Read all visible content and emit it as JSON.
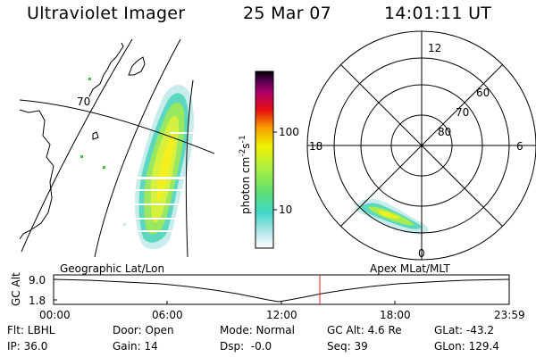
{
  "header": {
    "title": "Ultraviolet Imager",
    "date": "25 Mar 07",
    "time": "14:01:11 UT"
  },
  "geo_panel": {
    "lat_label": "70",
    "caption": "Geographic Lat/Lon"
  },
  "colorbar": {
    "unit_label": "photon cm",
    "unit_exp1": "-2",
    "unit_s": "s",
    "unit_exp2": "-1",
    "ticks": [
      "100",
      "10"
    ]
  },
  "polar_panel": {
    "caption": "Apex MLat/MLT",
    "mlt_labels": {
      "top": "12",
      "left": "18",
      "right": "6",
      "bottom": "0"
    },
    "mlat_labels": [
      "60",
      "70",
      "80"
    ]
  },
  "alt_plot": {
    "ylabel": "GC Alt",
    "yticks": [
      "9.0",
      "1.8"
    ],
    "xticks": [
      "00:00",
      "06:00",
      "12:00",
      "18:00",
      "23:59"
    ],
    "current_marker_color": "#e02020"
  },
  "info": {
    "filter": "Flt: LBHL",
    "ip": "IP: 36.0",
    "door": "Door: Open",
    "gain": "Gain: 14",
    "mode": "Mode: Normal",
    "dsp": "Dsp:  -0.0",
    "gc_alt": "GC Alt: 4.6 Re",
    "seq": "Seq: 39",
    "glat": "GLat: -43.2",
    "glon": "GLon: 129.4"
  }
}
